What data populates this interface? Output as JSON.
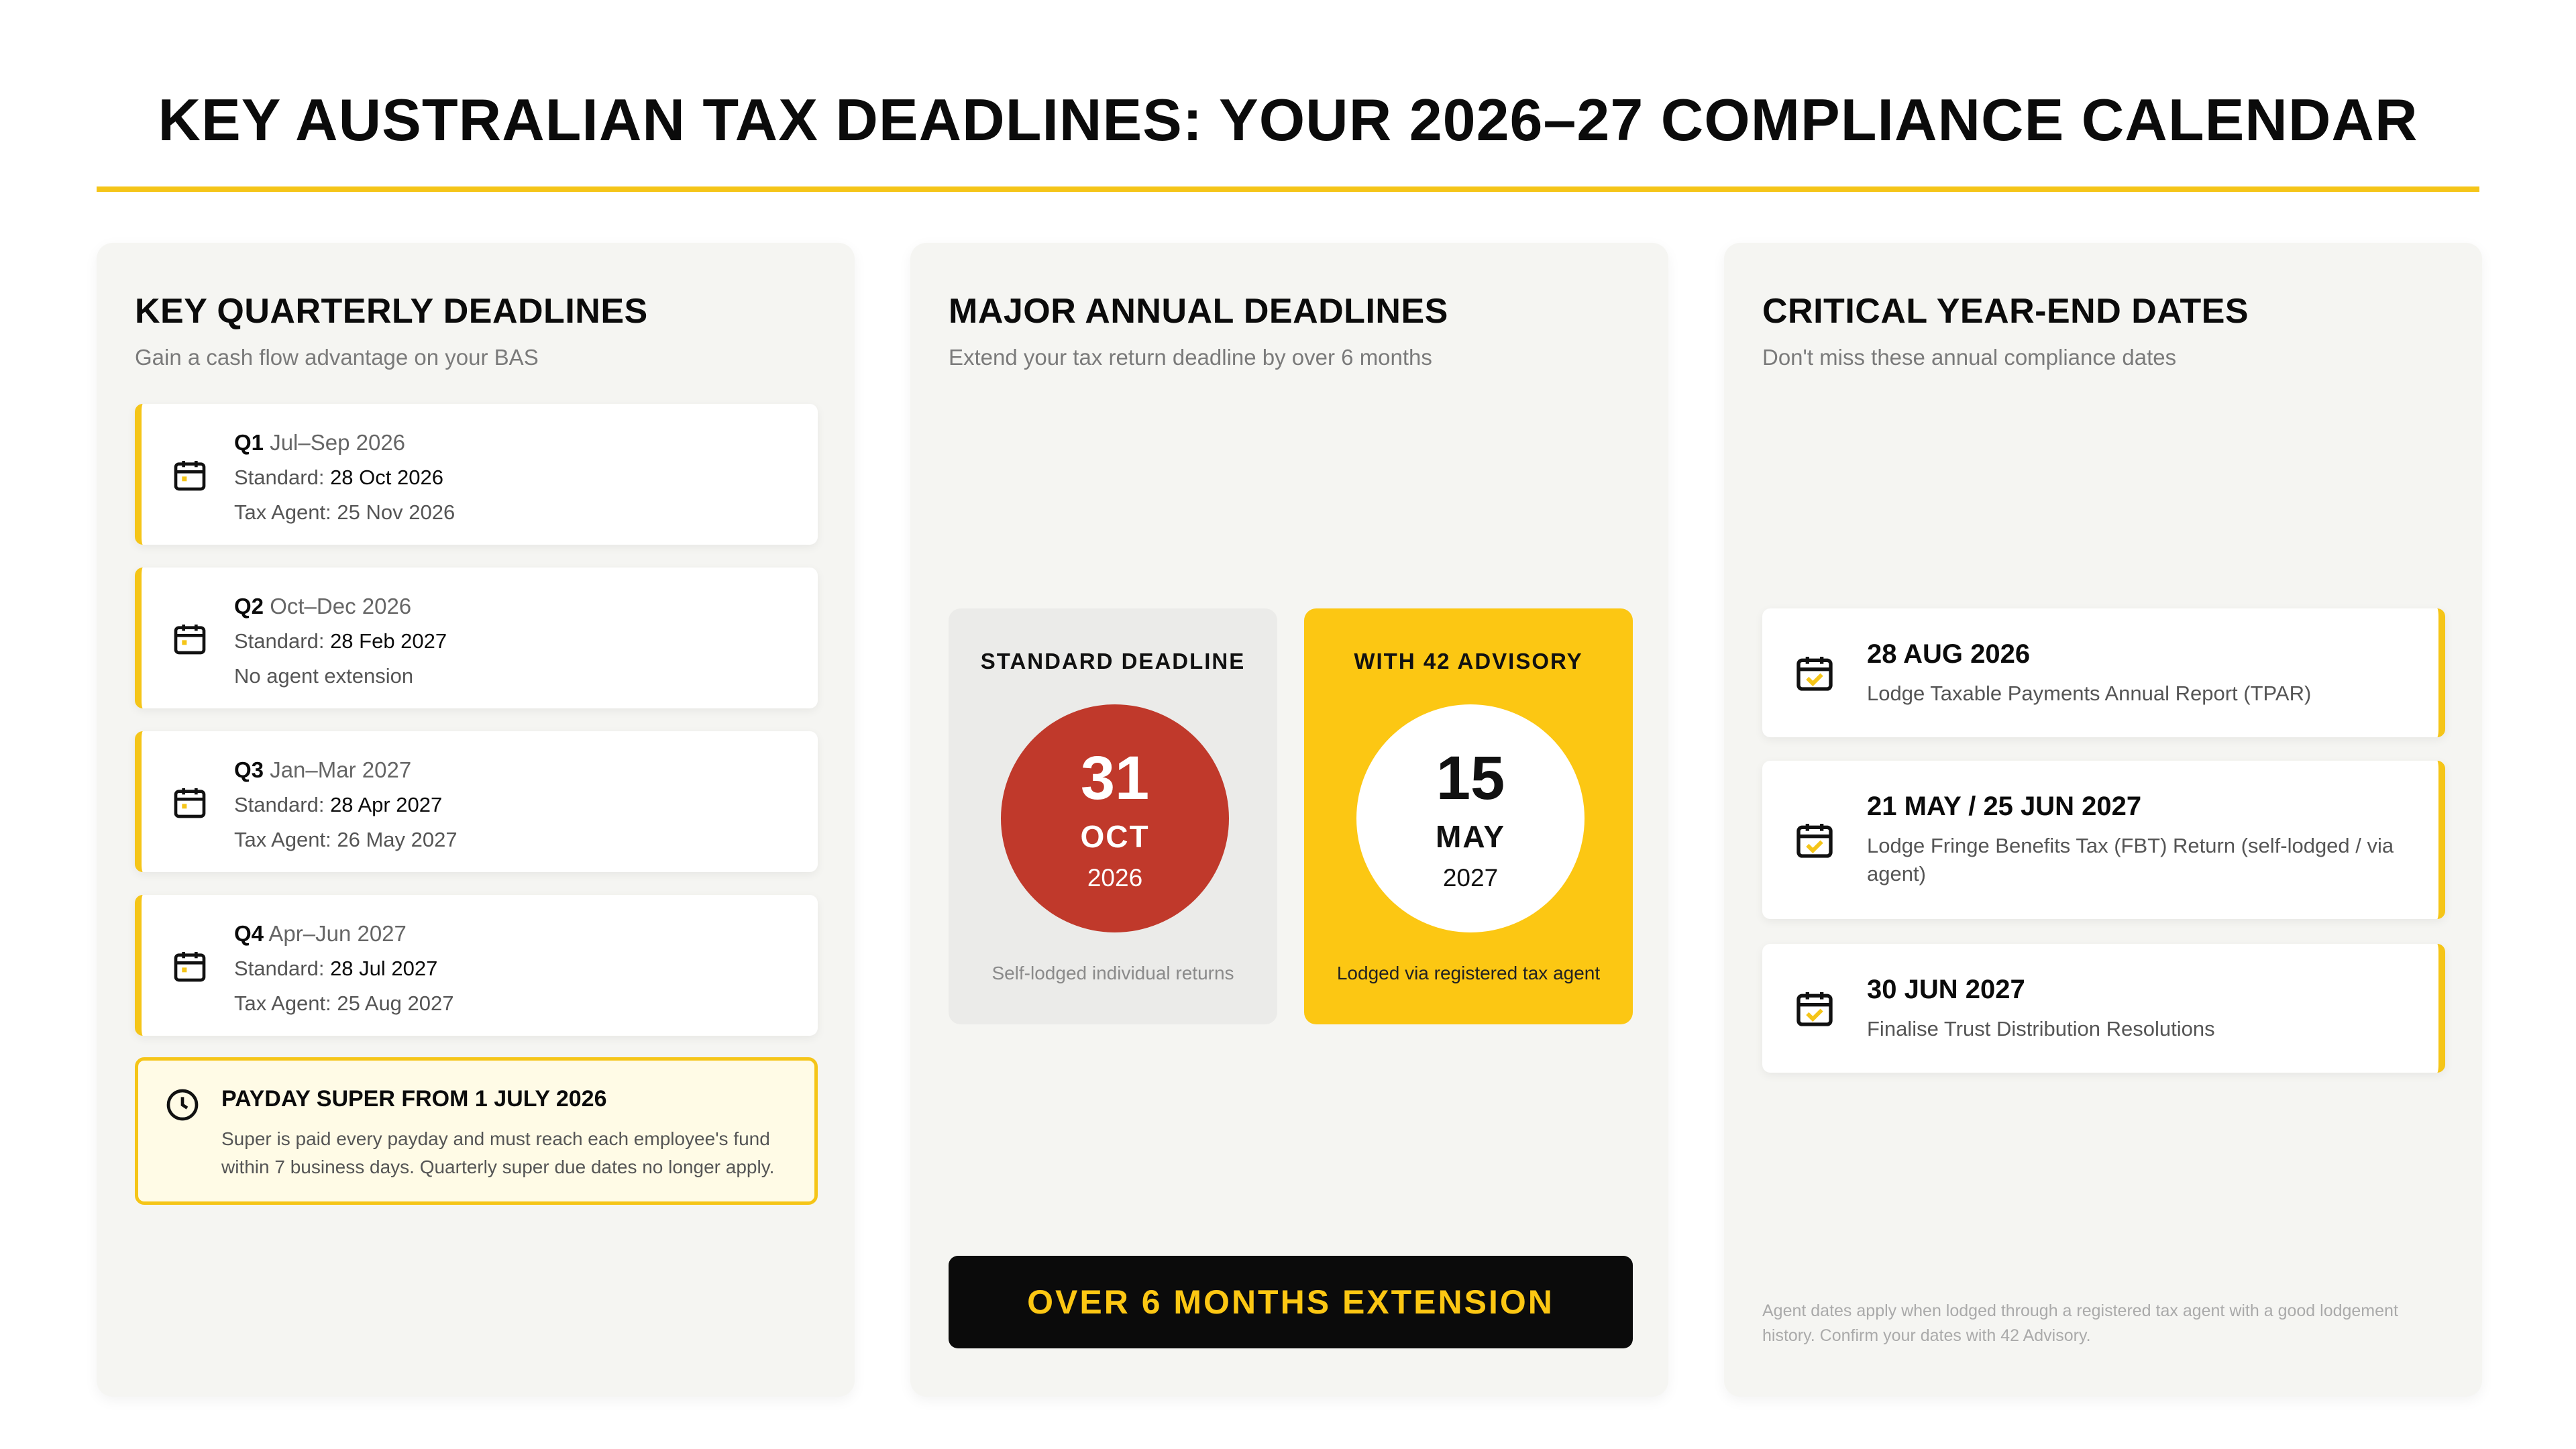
{
  "title": "KEY AUSTRALIAN TAX DEADLINES: YOUR 2026–27 COMPLIANCE CALENDAR",
  "colors": {
    "accent": "#f5c518",
    "red": "#c0392b",
    "dark": "#0b0b0b"
  },
  "quarterly": {
    "title": "KEY QUARTERLY DEADLINES",
    "subtitle": "Gain a cash flow advantage on your BAS",
    "items": [
      {
        "q": "Q1",
        "period": "Jul–Sep 2026",
        "std_label": "Standard:",
        "std_date": "28 Oct 2026",
        "agent": "Tax Agent: 25 Nov 2026"
      },
      {
        "q": "Q2",
        "period": "Oct–Dec 2026",
        "std_label": "Standard:",
        "std_date": "28 Feb 2027",
        "agent": "No agent extension"
      },
      {
        "q": "Q3",
        "period": "Jan–Mar 2027",
        "std_label": "Standard:",
        "std_date": "28 Apr 2027",
        "agent": "Tax Agent: 26 May 2027"
      },
      {
        "q": "Q4",
        "period": "Apr–Jun 2027",
        "std_label": "Standard:",
        "std_date": "28 Jul 2027",
        "agent": "Tax Agent: 25 Aug 2027"
      }
    ],
    "payday": {
      "title": "PAYDAY SUPER FROM 1 JULY 2026",
      "body": "Super is paid every payday and must reach each employee's fund within 7 business days. Quarterly super due dates no longer apply."
    }
  },
  "annual": {
    "title": "MAJOR ANNUAL DEADLINES",
    "subtitle": "Extend your tax return deadline by over 6 months",
    "standard": {
      "label": "STANDARD DEADLINE",
      "day": "31",
      "month": "OCT",
      "year": "2026",
      "note": "Self-lodged individual returns"
    },
    "advisory": {
      "label": "WITH 42 ADVISORY",
      "day": "15",
      "month": "MAY",
      "year": "2027",
      "note": "Lodged via registered tax agent"
    },
    "cta": "OVER 6 MONTHS EXTENSION"
  },
  "yearend": {
    "title": "CRITICAL YEAR-END DATES",
    "subtitle": "Don't miss these annual compliance dates",
    "items": [
      {
        "date": "28 AUG 2026",
        "desc": "Lodge Taxable Payments Annual Report (TPAR)"
      },
      {
        "date": "21 MAY / 25 JUN 2027",
        "desc": "Lodge Fringe Benefits Tax (FBT) Return (self-lodged / via agent)"
      },
      {
        "date": "30 JUN 2027",
        "desc": "Finalise Trust Distribution Resolutions"
      }
    ],
    "footnote": "Agent dates apply when lodged through a registered tax agent with a good lodgement history. Confirm your dates with 42 Advisory."
  },
  "icons": {
    "calendar": "calendar-icon",
    "calendar_check": "calendar-check-icon",
    "clock": "clock-icon"
  }
}
